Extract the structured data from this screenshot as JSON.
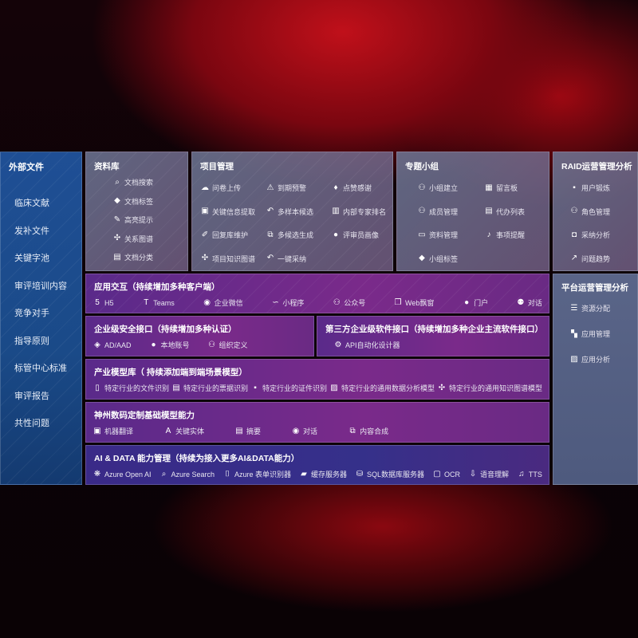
{
  "sidebar": {
    "title": "外部文件",
    "items": [
      "临床文献",
      "发补文件",
      "关键字池",
      "审评培训内容",
      "竞争对手",
      "指导原则",
      "标管中心标准",
      "审评报告",
      "共性问题"
    ]
  },
  "library": {
    "title": "资料库",
    "items": [
      {
        "icon": "doc-search-icon",
        "label": "文档搜索"
      },
      {
        "icon": "tag-icon",
        "label": "文档标签"
      },
      {
        "icon": "pen-icon",
        "label": "高亮提示"
      },
      {
        "icon": "graph-icon",
        "label": "关系图谱"
      },
      {
        "icon": "doc-classify-icon",
        "label": "文档分类"
      }
    ]
  },
  "project": {
    "title": "项目管理",
    "items": [
      {
        "icon": "cloud-upload-icon",
        "label": "问卷上传"
      },
      {
        "icon": "alarm-icon",
        "label": "到期预警"
      },
      {
        "icon": "thumbs-up-icon",
        "label": "点赞感谢"
      },
      {
        "icon": "extract-icon",
        "label": "关键信息提取"
      },
      {
        "icon": "reply-icon",
        "label": "多样本候选"
      },
      {
        "icon": "ranking-icon",
        "label": "内部专家排名"
      },
      {
        "icon": "edit-icon",
        "label": "回复库维护"
      },
      {
        "icon": "puzzle-icon",
        "label": "多候选生成"
      },
      {
        "icon": "user-icon",
        "label": "评审员画像"
      },
      {
        "icon": "graph-icon",
        "label": "项目知识图谱"
      },
      {
        "icon": "reply-icon",
        "label": "一键采纳"
      }
    ]
  },
  "group": {
    "title": "专题小组",
    "items": [
      {
        "icon": "users-icon",
        "label": "小组建立"
      },
      {
        "icon": "bbs-icon",
        "label": "留言板"
      },
      {
        "icon": "user-add-icon",
        "label": "成员管理"
      },
      {
        "icon": "clipboard-icon",
        "label": "代办列表"
      },
      {
        "icon": "folder-icon",
        "label": "资料管理"
      },
      {
        "icon": "bell-icon",
        "label": "事项提醒"
      },
      {
        "icon": "tag-icon",
        "label": "小组标签"
      }
    ]
  },
  "raid": {
    "title": "RAID运营管理分析",
    "items": [
      {
        "icon": "id-card-icon",
        "label": "用户锻炼"
      },
      {
        "icon": "users-icon",
        "label": "角色管理"
      },
      {
        "icon": "qa-icon",
        "label": "采纳分析"
      },
      {
        "icon": "trend-icon",
        "label": "问题趋势"
      }
    ]
  },
  "platform": {
    "title": "平台运营管理分析",
    "items": [
      {
        "icon": "list-check-icon",
        "label": "资源分配"
      },
      {
        "icon": "apps-icon",
        "label": "应用管理"
      },
      {
        "icon": "analytics-icon",
        "label": "应用分析"
      }
    ]
  },
  "interaction": {
    "title": "应用交互（持续增加多种客户端）",
    "items": [
      {
        "icon": "html5-icon",
        "label": "H5"
      },
      {
        "icon": "teams-icon",
        "label": "Teams"
      },
      {
        "icon": "wecom-icon",
        "label": "企业微信"
      },
      {
        "icon": "miniprogram-icon",
        "label": "小程序"
      },
      {
        "icon": "users-icon",
        "label": "公众号"
      },
      {
        "icon": "window-icon",
        "label": "Web飘窗"
      },
      {
        "icon": "portal-icon",
        "label": "门户"
      },
      {
        "icon": "chat-users-icon",
        "label": "对话"
      }
    ]
  },
  "security": {
    "title": "企业级安全接口（持续增加多种认证）",
    "items": [
      {
        "icon": "ad-icon",
        "label": "AD/AAD"
      },
      {
        "icon": "local-account-icon",
        "label": "本地账号"
      },
      {
        "icon": "org-icon",
        "label": "组织定义"
      }
    ]
  },
  "thirdparty": {
    "title": "第三方企业级软件接口（持续增加多种企业主流软件接口）",
    "items": [
      {
        "icon": "api-gear-icon",
        "label": "API自动化设计器"
      }
    ]
  },
  "industry": {
    "title": "产业模型库（ 持续添加端到端场景模型）",
    "items": [
      {
        "icon": "file-icon",
        "label": "特定行业的文件识别"
      },
      {
        "icon": "receipt-icon",
        "label": "特定行业的票据识别"
      },
      {
        "icon": "id-card-icon",
        "label": "特定行业的证件识别"
      },
      {
        "icon": "chart-icon",
        "label": "特定行业的通用数据分析模型"
      },
      {
        "icon": "graph-icon",
        "label": "特定行业的通用知识图谱模型"
      }
    ]
  },
  "base": {
    "title": "神州数码定制基础模型能力",
    "items": [
      {
        "icon": "translate-icon",
        "label": "机器翻译"
      },
      {
        "icon": "entity-icon",
        "label": "关键实体"
      },
      {
        "icon": "summary-icon",
        "label": "摘要"
      },
      {
        "icon": "chat-icon",
        "label": "对话"
      },
      {
        "icon": "puzzle-icon",
        "label": "内容合成"
      }
    ]
  },
  "aidata": {
    "title": "AI & DATA 能力管理（持续为接入更多AI&DATA能力）",
    "items": [
      {
        "icon": "openai-icon",
        "label": "Azure Open AI"
      },
      {
        "icon": "search-doc-icon",
        "label": "Azure Search"
      },
      {
        "icon": "form-icon",
        "label": "Azure 表单识别器"
      },
      {
        "icon": "cache-icon",
        "label": "缓存服务器"
      },
      {
        "icon": "database-icon",
        "label": "SQL数据库服务器"
      },
      {
        "icon": "ocr-icon",
        "label": "OCR"
      },
      {
        "icon": "speech-icon",
        "label": "语音理解"
      },
      {
        "icon": "tts-icon",
        "label": "TTS"
      }
    ]
  }
}
